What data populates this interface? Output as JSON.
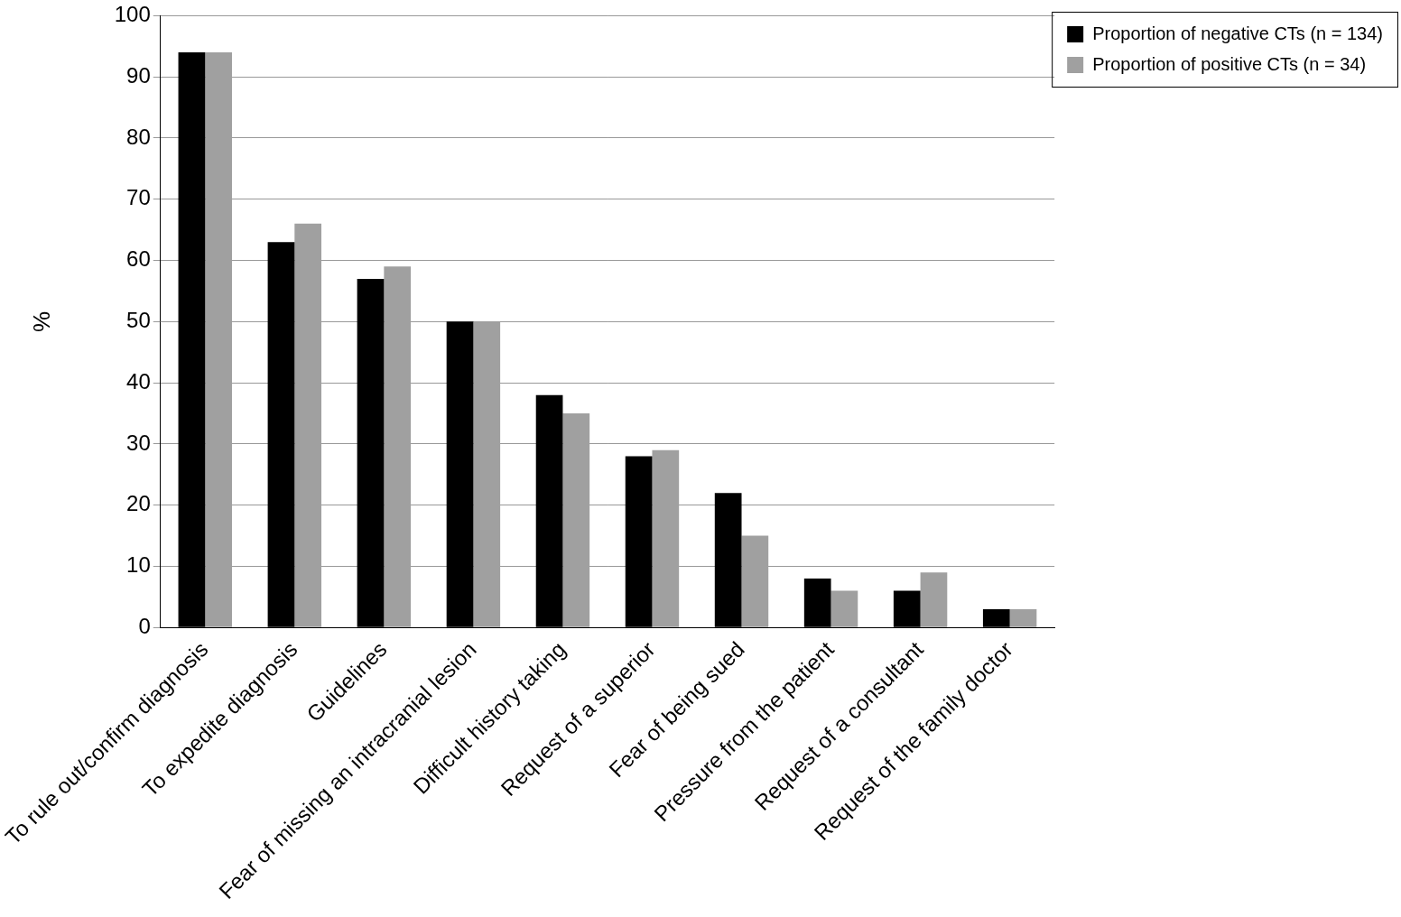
{
  "chart_data": {
    "type": "bar",
    "y_label": "%",
    "categories": [
      "To rule out/confirm diagnosis",
      "To expedite diagnosis",
      "Guidelines",
      "Fear of missing an intracranial lesion",
      "Difficult history taking",
      "Request of a superior",
      "Fear of being sued",
      "Pressure from the patient",
      "Request of a consultant",
      "Request of the family doctor"
    ],
    "series": [
      {
        "name": "Proportion of negative CTs (n = 134)",
        "color": "#000000",
        "values": [
          94,
          63,
          57,
          50,
          38,
          28,
          22,
          8,
          6,
          3
        ]
      },
      {
        "name": "Proportion of positive CTs (n = 34)",
        "color": "#a0a0a0",
        "values": [
          94,
          66,
          59,
          50,
          35,
          29,
          15,
          6,
          9,
          3
        ]
      }
    ],
    "ylim": [
      0,
      100
    ],
    "yticks": [
      0,
      10,
      20,
      30,
      40,
      50,
      60,
      70,
      80,
      90,
      100
    ],
    "grid": true,
    "legend": "right"
  }
}
